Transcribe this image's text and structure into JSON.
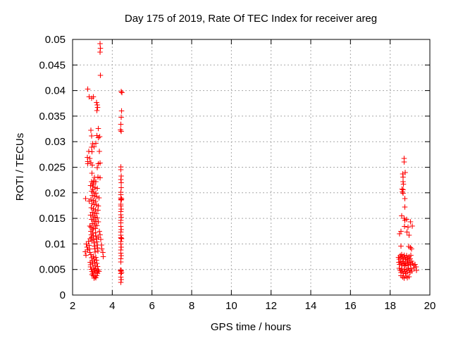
{
  "chart_data": {
    "type": "scatter",
    "title": "Day 175 of 2019, Rate Of TEC Index for receiver areg",
    "xlabel": "GPS time / hours",
    "ylabel": "ROTI / TECUs",
    "xlim": [
      2,
      20
    ],
    "ylim": [
      0,
      0.05
    ],
    "x_ticks": [
      2,
      4,
      6,
      8,
      10,
      12,
      14,
      16,
      18,
      20
    ],
    "x_tick_labels": [
      "2",
      "4",
      "6",
      "8",
      "10",
      "12",
      "14",
      "16",
      "18",
      "20"
    ],
    "y_ticks": [
      0,
      0.005,
      0.01,
      0.015,
      0.02,
      0.025,
      0.03,
      0.035,
      0.04,
      0.045,
      0.05
    ],
    "y_tick_labels": [
      "0",
      "0.005",
      "0.01",
      "0.015",
      "0.02",
      "0.025",
      "0.03",
      "0.035",
      "0.04",
      "0.045",
      "0.05"
    ],
    "grid": true,
    "legend": "none",
    "marker": "plus",
    "marker_color": "#ff0000",
    "series": [
      {
        "points": [
          [
            3.38,
            0.0492
          ],
          [
            3.41,
            0.0483
          ],
          [
            3.39,
            0.0475
          ],
          [
            3.41,
            0.043
          ],
          [
            2.77,
            0.0403
          ],
          [
            2.84,
            0.0388
          ],
          [
            3.04,
            0.0388
          ],
          [
            2.95,
            0.0385
          ],
          [
            3.2,
            0.0377
          ],
          [
            3.24,
            0.0372
          ],
          [
            3.26,
            0.0367
          ],
          [
            3.22,
            0.0361
          ],
          [
            3.29,
            0.0326
          ],
          [
            2.92,
            0.0322
          ],
          [
            2.96,
            0.0311
          ],
          [
            3.23,
            0.0312
          ],
          [
            3.37,
            0.031
          ],
          [
            3.3,
            0.0308
          ],
          [
            3.02,
            0.0296
          ],
          [
            3.17,
            0.0297
          ],
          [
            2.96,
            0.0289
          ],
          [
            3.08,
            0.029
          ],
          [
            2.82,
            0.0281
          ],
          [
            2.98,
            0.028
          ],
          [
            3.35,
            0.0281
          ],
          [
            2.75,
            0.0269
          ],
          [
            2.87,
            0.0267
          ],
          [
            2.77,
            0.0261
          ],
          [
            2.93,
            0.0259
          ],
          [
            3.0,
            0.0254
          ],
          [
            2.76,
            0.0257
          ],
          [
            3.29,
            0.0257
          ],
          [
            3.39,
            0.0258
          ],
          [
            3.24,
            0.0249
          ],
          [
            2.98,
            0.0238
          ],
          [
            3.27,
            0.0231
          ],
          [
            3.38,
            0.0229
          ],
          [
            3.1,
            0.023
          ],
          [
            2.95,
            0.0222
          ],
          [
            3.06,
            0.0223
          ],
          [
            3.17,
            0.0222
          ],
          [
            3.03,
            0.0219
          ],
          [
            3.05,
            0.0216
          ],
          [
            3.02,
            0.0207
          ],
          [
            2.66,
            0.0189
          ],
          [
            2.9,
            0.0214
          ],
          [
            3.02,
            0.0212
          ],
          [
            3.13,
            0.021
          ],
          [
            3.25,
            0.0209
          ],
          [
            2.95,
            0.0203
          ],
          [
            3.07,
            0.0201
          ],
          [
            3.18,
            0.0199
          ],
          [
            3.0,
            0.0195
          ],
          [
            3.11,
            0.0193
          ],
          [
            3.22,
            0.0192
          ],
          [
            3.33,
            0.019
          ],
          [
            2.92,
            0.0187
          ],
          [
            3.04,
            0.0185
          ],
          [
            3.15,
            0.0183
          ],
          [
            2.97,
            0.0179
          ],
          [
            3.08,
            0.0177
          ],
          [
            3.2,
            0.0176
          ],
          [
            3.3,
            0.0174
          ],
          [
            2.94,
            0.0171
          ],
          [
            3.05,
            0.0169
          ],
          [
            3.16,
            0.0167
          ],
          [
            3.27,
            0.0166
          ],
          [
            2.99,
            0.0162
          ],
          [
            3.1,
            0.016
          ],
          [
            3.21,
            0.0159
          ],
          [
            2.91,
            0.0156
          ],
          [
            3.03,
            0.0154
          ],
          [
            3.13,
            0.0152
          ],
          [
            3.24,
            0.0151
          ],
          [
            2.96,
            0.0148
          ],
          [
            3.07,
            0.0146
          ],
          [
            3.18,
            0.0144
          ],
          [
            3.29,
            0.0143
          ],
          [
            3.0,
            0.014
          ],
          [
            3.11,
            0.0138
          ],
          [
            3.22,
            0.0136
          ],
          [
            2.93,
            0.0133
          ],
          [
            3.04,
            0.0131
          ],
          [
            3.15,
            0.013
          ],
          [
            2.87,
            0.0135
          ],
          [
            2.84,
            0.0184
          ],
          [
            2.7,
            0.01
          ],
          [
            2.73,
            0.0094
          ],
          [
            2.76,
            0.0088
          ],
          [
            2.79,
            0.0105
          ],
          [
            2.83,
            0.0097
          ],
          [
            2.85,
            0.009
          ],
          [
            2.87,
            0.0083
          ],
          [
            2.89,
            0.011
          ],
          [
            2.92,
            0.0125
          ],
          [
            2.94,
            0.0118
          ],
          [
            2.96,
            0.0112
          ],
          [
            2.98,
            0.0106
          ],
          [
            3.0,
            0.0128
          ],
          [
            3.02,
            0.0121
          ],
          [
            3.04,
            0.0115
          ],
          [
            3.06,
            0.0108
          ],
          [
            3.08,
            0.0102
          ],
          [
            3.1,
            0.0096
          ],
          [
            3.12,
            0.009
          ],
          [
            3.14,
            0.0084
          ],
          [
            3.16,
            0.0122
          ],
          [
            3.18,
            0.0116
          ],
          [
            3.2,
            0.011
          ],
          [
            3.22,
            0.0104
          ],
          [
            3.24,
            0.0098
          ],
          [
            3.26,
            0.0092
          ],
          [
            3.28,
            0.0086
          ],
          [
            3.3,
            0.0113
          ],
          [
            2.93,
            0.0079
          ],
          [
            2.96,
            0.0073
          ],
          [
            2.99,
            0.0067
          ],
          [
            3.02,
            0.0061
          ],
          [
            3.05,
            0.0076
          ],
          [
            3.08,
            0.007
          ],
          [
            3.11,
            0.0064
          ],
          [
            3.14,
            0.0058
          ],
          [
            3.17,
            0.0074
          ],
          [
            3.2,
            0.0068
          ],
          [
            3.23,
            0.0062
          ],
          [
            3.26,
            0.0056
          ],
          [
            2.9,
            0.0055
          ],
          [
            2.94,
            0.005
          ],
          [
            2.98,
            0.0046
          ],
          [
            3.02,
            0.0043
          ],
          [
            3.06,
            0.0052
          ],
          [
            3.1,
            0.0048
          ],
          [
            3.14,
            0.0044
          ],
          [
            3.18,
            0.0051
          ],
          [
            3.22,
            0.0047
          ],
          [
            3.26,
            0.0043
          ],
          [
            3.3,
            0.0049
          ],
          [
            3.34,
            0.0046
          ],
          [
            2.97,
            0.004
          ],
          [
            3.05,
            0.0038
          ],
          [
            3.13,
            0.0036
          ],
          [
            3.21,
            0.0038
          ],
          [
            3.09,
            0.0033
          ],
          [
            3.17,
            0.0034
          ],
          [
            3.35,
            0.0125
          ],
          [
            3.38,
            0.0118
          ],
          [
            3.42,
            0.0109
          ],
          [
            3.45,
            0.0098
          ],
          [
            3.48,
            0.009
          ],
          [
            3.52,
            0.0083
          ],
          [
            3.55,
            0.0075
          ],
          [
            2.67,
            0.0078
          ],
          [
            2.64,
            0.0085
          ],
          [
            2.88,
            0.0064
          ],
          [
            2.91,
            0.0059
          ],
          [
            4.45,
            0.0398
          ],
          [
            4.48,
            0.0396
          ],
          [
            4.46,
            0.036
          ],
          [
            4.45,
            0.0348
          ],
          [
            4.44,
            0.0334
          ],
          [
            4.42,
            0.0323
          ],
          [
            4.45,
            0.032
          ],
          [
            4.43,
            0.0251
          ],
          [
            4.43,
            0.0245
          ],
          [
            4.45,
            0.0233
          ],
          [
            4.43,
            0.0226
          ],
          [
            4.45,
            0.022
          ],
          [
            4.45,
            0.021
          ],
          [
            4.43,
            0.0201
          ],
          [
            4.44,
            0.0196
          ],
          [
            4.44,
            0.019
          ],
          [
            4.46,
            0.0188
          ],
          [
            4.43,
            0.0187
          ],
          [
            4.45,
            0.0186
          ],
          [
            4.43,
            0.0178
          ],
          [
            4.44,
            0.0174
          ],
          [
            4.45,
            0.0168
          ],
          [
            4.43,
            0.0163
          ],
          [
            4.44,
            0.0157
          ],
          [
            4.45,
            0.0152
          ],
          [
            4.43,
            0.0146
          ],
          [
            4.44,
            0.0141
          ],
          [
            4.43,
            0.0134
          ],
          [
            4.45,
            0.0128
          ],
          [
            4.43,
            0.0123
          ],
          [
            4.44,
            0.0117
          ],
          [
            4.43,
            0.0112
          ],
          [
            4.45,
            0.0111
          ],
          [
            4.46,
            0.011
          ],
          [
            4.44,
            0.0105
          ],
          [
            4.43,
            0.01
          ],
          [
            4.45,
            0.0094
          ],
          [
            4.43,
            0.0088
          ],
          [
            4.44,
            0.0082
          ],
          [
            4.45,
            0.0077
          ],
          [
            4.43,
            0.0071
          ],
          [
            4.44,
            0.0065
          ],
          [
            4.42,
            0.0049
          ],
          [
            4.45,
            0.0048
          ],
          [
            4.44,
            0.0047
          ],
          [
            4.46,
            0.0044
          ],
          [
            4.43,
            0.0042
          ],
          [
            4.44,
            0.0035
          ],
          [
            4.45,
            0.003
          ],
          [
            4.43,
            0.0025
          ],
          [
            18.7,
            0.0267
          ],
          [
            18.7,
            0.026
          ],
          [
            18.76,
            0.024
          ],
          [
            18.63,
            0.0237
          ],
          [
            18.65,
            0.0231
          ],
          [
            18.65,
            0.0222
          ],
          [
            18.67,
            0.0217
          ],
          [
            18.59,
            0.0207
          ],
          [
            18.65,
            0.0206
          ],
          [
            18.62,
            0.0202
          ],
          [
            18.65,
            0.0199
          ],
          [
            18.74,
            0.0189
          ],
          [
            18.74,
            0.0172
          ],
          [
            18.58,
            0.0155
          ],
          [
            18.7,
            0.015
          ],
          [
            18.82,
            0.0148
          ],
          [
            18.74,
            0.0146
          ],
          [
            19.02,
            0.0143
          ],
          [
            19.11,
            0.0135
          ],
          [
            18.73,
            0.0134
          ],
          [
            18.9,
            0.0133
          ],
          [
            18.55,
            0.0125
          ],
          [
            18.85,
            0.0123
          ],
          [
            18.47,
            0.012
          ],
          [
            18.95,
            0.0117
          ],
          [
            18.55,
            0.0096
          ],
          [
            18.93,
            0.0095
          ],
          [
            19.02,
            0.0093
          ],
          [
            19.08,
            0.009
          ],
          [
            18.42,
            0.0074
          ],
          [
            18.46,
            0.007
          ],
          [
            18.5,
            0.0077
          ],
          [
            18.54,
            0.0073
          ],
          [
            18.58,
            0.0079
          ],
          [
            18.62,
            0.0075
          ],
          [
            18.66,
            0.0071
          ],
          [
            18.7,
            0.0078
          ],
          [
            18.74,
            0.0074
          ],
          [
            18.78,
            0.007
          ],
          [
            18.82,
            0.0077
          ],
          [
            18.86,
            0.0073
          ],
          [
            18.9,
            0.0069
          ],
          [
            18.95,
            0.0075
          ],
          [
            19.0,
            0.0071
          ],
          [
            19.05,
            0.0078
          ],
          [
            18.44,
            0.0064
          ],
          [
            18.48,
            0.006
          ],
          [
            18.52,
            0.0066
          ],
          [
            18.56,
            0.0062
          ],
          [
            18.6,
            0.0058
          ],
          [
            18.64,
            0.0065
          ],
          [
            18.68,
            0.0061
          ],
          [
            18.72,
            0.0057
          ],
          [
            18.76,
            0.0063
          ],
          [
            18.8,
            0.0059
          ],
          [
            18.84,
            0.0066
          ],
          [
            18.88,
            0.0062
          ],
          [
            18.92,
            0.0058
          ],
          [
            18.97,
            0.0064
          ],
          [
            19.02,
            0.006
          ],
          [
            19.08,
            0.0066
          ],
          [
            19.13,
            0.0062
          ],
          [
            19.18,
            0.0058
          ],
          [
            18.46,
            0.0052
          ],
          [
            18.5,
            0.0048
          ],
          [
            18.54,
            0.0044
          ],
          [
            18.58,
            0.0051
          ],
          [
            18.62,
            0.0047
          ],
          [
            18.66,
            0.0043
          ],
          [
            18.7,
            0.005
          ],
          [
            18.74,
            0.0046
          ],
          [
            18.78,
            0.0042
          ],
          [
            18.82,
            0.0049
          ],
          [
            18.86,
            0.0045
          ],
          [
            18.9,
            0.0052
          ],
          [
            18.95,
            0.0048
          ],
          [
            19.0,
            0.0044
          ],
          [
            19.05,
            0.0051
          ],
          [
            19.1,
            0.0047
          ],
          [
            18.55,
            0.0038
          ],
          [
            18.63,
            0.0035
          ],
          [
            18.71,
            0.0033
          ],
          [
            18.79,
            0.0037
          ],
          [
            18.87,
            0.0034
          ],
          [
            18.95,
            0.0036
          ],
          [
            19.2,
            0.0053
          ],
          [
            19.25,
            0.006
          ],
          [
            19.3,
            0.0055
          ],
          [
            19.32,
            0.0048
          ]
        ]
      }
    ]
  }
}
